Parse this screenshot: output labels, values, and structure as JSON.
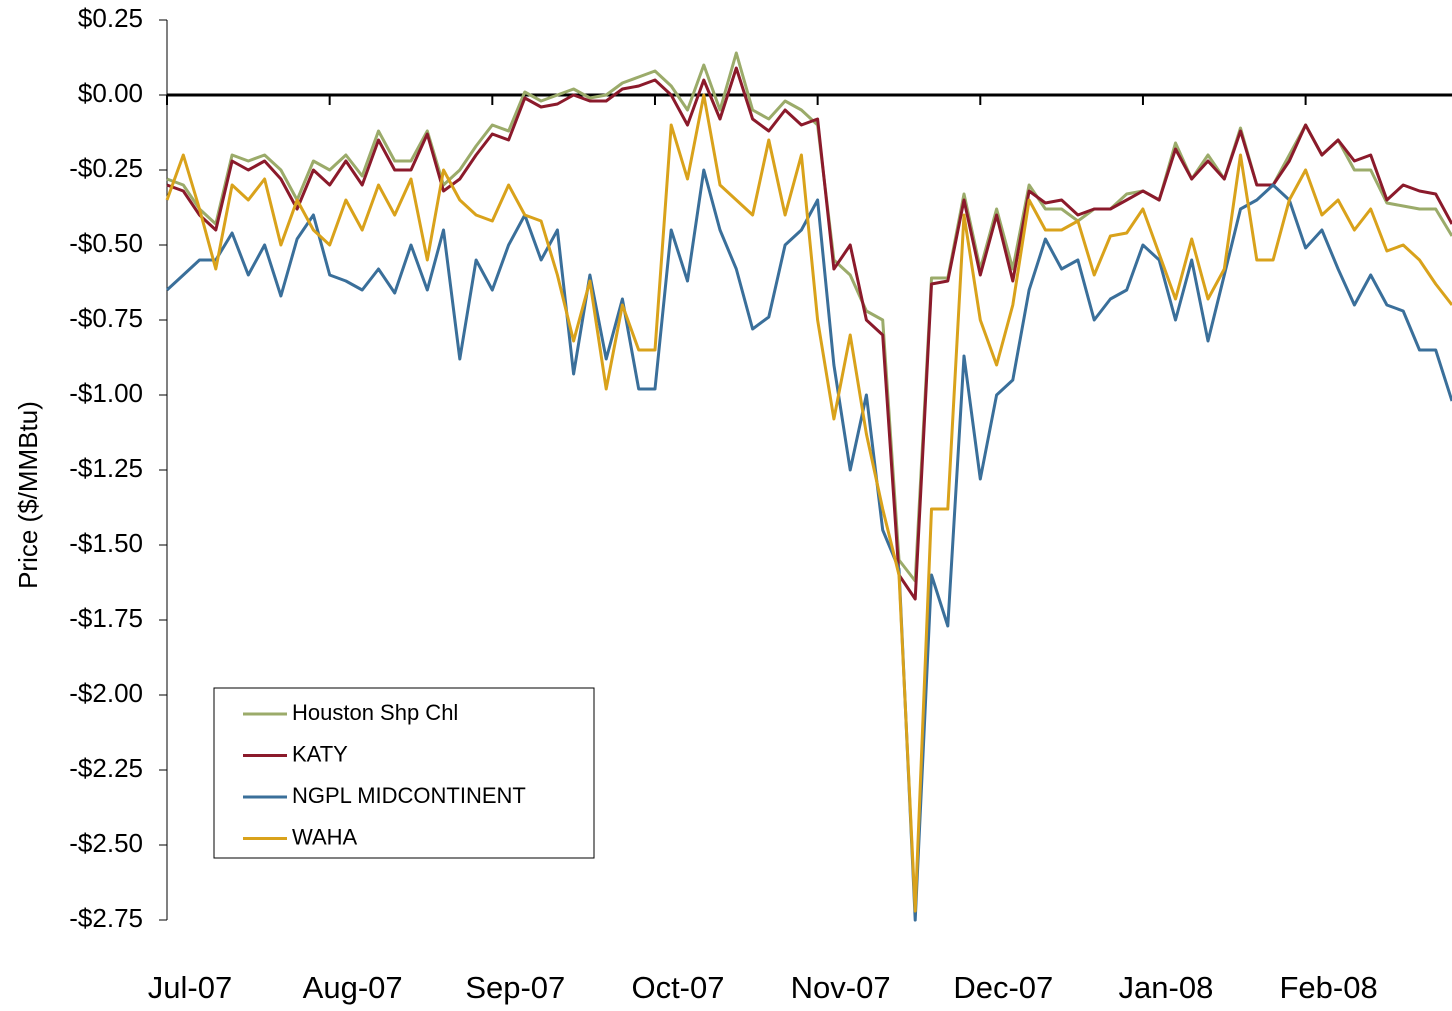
{
  "chart_data": {
    "type": "line",
    "y_label": "Price ($/MMBtu)",
    "categories": [
      "Jul-07",
      null,
      null,
      null,
      null,
      null,
      null,
      null,
      null,
      null,
      "Aug-07",
      null,
      null,
      null,
      null,
      null,
      null,
      null,
      null,
      null,
      "Sep-07",
      null,
      null,
      null,
      null,
      null,
      null,
      null,
      null,
      null,
      "Oct-07",
      null,
      null,
      null,
      null,
      null,
      null,
      null,
      null,
      null,
      "Nov-07",
      null,
      null,
      null,
      null,
      null,
      null,
      null,
      null,
      null,
      "Dec-07",
      null,
      null,
      null,
      null,
      null,
      null,
      null,
      null,
      null,
      "Jan-08",
      null,
      null,
      null,
      null,
      null,
      null,
      null,
      null,
      null,
      "Feb-08",
      null,
      null,
      null,
      null,
      null,
      null,
      null,
      null,
      null
    ],
    "ylim": [
      -2.75,
      0.25
    ],
    "yticks": [
      {
        "value": 0.25,
        "label": "$0.25"
      },
      {
        "value": 0,
        "label": "$0.00"
      },
      {
        "value": -0.25,
        "label": "-$0.25"
      },
      {
        "value": -0.5,
        "label": "-$0.50"
      },
      {
        "value": -0.75,
        "label": "-$0.75"
      },
      {
        "value": -1,
        "label": "-$1.00"
      },
      {
        "value": -1.25,
        "label": "-$1.25"
      },
      {
        "value": -1.5,
        "label": "-$1.50"
      },
      {
        "value": -1.75,
        "label": "-$1.75"
      },
      {
        "value": -2,
        "label": "-$2.00"
      },
      {
        "value": -2.25,
        "label": "-$2.25"
      },
      {
        "value": -2.5,
        "label": "-$2.50"
      },
      {
        "value": -2.75,
        "label": "-$2.75"
      }
    ],
    "legend": "lower left",
    "series": [
      {
        "name": "Houston Shp Chl",
        "color": "#9bab6a",
        "values": [
          -0.28,
          -0.3,
          -0.38,
          -0.43,
          -0.2,
          -0.22,
          -0.2,
          -0.25,
          -0.35,
          -0.22,
          -0.25,
          -0.2,
          -0.27,
          -0.12,
          -0.22,
          -0.22,
          -0.12,
          -0.3,
          -0.25,
          -0.17,
          -0.1,
          -0.12,
          0.01,
          -0.02,
          0,
          0.02,
          -0.01,
          0,
          0.04,
          0.06,
          0.08,
          0.03,
          -0.05,
          0.1,
          -0.05,
          0.14,
          -0.05,
          -0.08,
          -0.02,
          -0.05,
          -0.1,
          -0.55,
          -0.6,
          -0.72,
          -0.75,
          -1.55,
          -1.62,
          -0.61,
          -0.61,
          -0.33,
          -0.58,
          -0.38,
          -0.58,
          -0.3,
          -0.38,
          -0.38,
          -0.42,
          -0.38,
          -0.38,
          -0.33,
          -0.32,
          -0.35,
          -0.16,
          -0.28,
          -0.2,
          -0.28,
          -0.11,
          -0.3,
          -0.3,
          -0.2,
          -0.1,
          -0.2,
          -0.15,
          -0.25,
          -0.25,
          -0.36,
          -0.37,
          -0.38,
          -0.38,
          -0.47
        ]
      },
      {
        "name": "KATY",
        "color": "#8b1a2b",
        "values": [
          -0.3,
          -0.32,
          -0.4,
          -0.45,
          -0.22,
          -0.25,
          -0.22,
          -0.28,
          -0.38,
          -0.25,
          -0.3,
          -0.22,
          -0.3,
          -0.15,
          -0.25,
          -0.25,
          -0.13,
          -0.32,
          -0.28,
          -0.2,
          -0.13,
          -0.15,
          -0.01,
          -0.04,
          -0.03,
          0,
          -0.02,
          -0.02,
          0.02,
          0.03,
          0.05,
          0,
          -0.1,
          0.05,
          -0.08,
          0.09,
          -0.08,
          -0.12,
          -0.05,
          -0.1,
          -0.08,
          -0.58,
          -0.5,
          -0.75,
          -0.8,
          -1.6,
          -1.68,
          -0.63,
          -0.62,
          -0.35,
          -0.6,
          -0.4,
          -0.62,
          -0.32,
          -0.36,
          -0.35,
          -0.4,
          -0.38,
          -0.38,
          -0.35,
          -0.32,
          -0.35,
          -0.18,
          -0.28,
          -0.22,
          -0.28,
          -0.12,
          -0.3,
          -0.3,
          -0.22,
          -0.1,
          -0.2,
          -0.15,
          -0.22,
          -0.2,
          -0.35,
          -0.3,
          -0.32,
          -0.33,
          -0.43
        ]
      },
      {
        "name": "NGPL MIDCONTINENT",
        "color": "#3a6f9a",
        "values": [
          -0.65,
          -0.6,
          -0.55,
          -0.55,
          -0.46,
          -0.6,
          -0.5,
          -0.67,
          -0.48,
          -0.4,
          -0.6,
          -0.62,
          -0.65,
          -0.58,
          -0.66,
          -0.5,
          -0.65,
          -0.45,
          -0.88,
          -0.55,
          -0.65,
          -0.5,
          -0.4,
          -0.55,
          -0.45,
          -0.93,
          -0.6,
          -0.88,
          -0.68,
          -0.98,
          -0.98,
          -0.45,
          -0.62,
          -0.25,
          -0.45,
          -0.58,
          -0.78,
          -0.74,
          -0.5,
          -0.45,
          -0.35,
          -0.9,
          -1.25,
          -1.0,
          -1.45,
          -1.58,
          -2.75,
          -1.6,
          -1.77,
          -0.87,
          -1.28,
          -1.0,
          -0.95,
          -0.65,
          -0.48,
          -0.58,
          -0.55,
          -0.75,
          -0.68,
          -0.65,
          -0.5,
          -0.55,
          -0.75,
          -0.55,
          -0.82,
          -0.6,
          -0.38,
          -0.35,
          -0.3,
          -0.35,
          -0.51,
          -0.45,
          -0.58,
          -0.7,
          -0.6,
          -0.7,
          -0.72,
          -0.85,
          -0.85,
          -1.02
        ]
      },
      {
        "name": "WAHA",
        "color": "#d9a21b",
        "values": [
          -0.35,
          -0.2,
          -0.38,
          -0.58,
          -0.3,
          -0.35,
          -0.28,
          -0.5,
          -0.35,
          -0.45,
          -0.5,
          -0.35,
          -0.45,
          -0.3,
          -0.4,
          -0.28,
          -0.55,
          -0.25,
          -0.35,
          -0.4,
          -0.42,
          -0.3,
          -0.4,
          -0.42,
          -0.6,
          -0.82,
          -0.62,
          -0.98,
          -0.7,
          -0.85,
          -0.85,
          -0.1,
          -0.28,
          0,
          -0.3,
          -0.35,
          -0.4,
          -0.15,
          -0.4,
          -0.2,
          -0.75,
          -1.08,
          -0.8,
          -1.13,
          -1.38,
          -1.6,
          -2.72,
          -1.38,
          -1.38,
          -0.4,
          -0.75,
          -0.9,
          -0.7,
          -0.35,
          -0.45,
          -0.45,
          -0.42,
          -0.6,
          -0.47,
          -0.46,
          -0.38,
          -0.53,
          -0.68,
          -0.48,
          -0.68,
          -0.58,
          -0.2,
          -0.55,
          -0.55,
          -0.35,
          -0.25,
          -0.4,
          -0.35,
          -0.45,
          -0.38,
          -0.52,
          -0.5,
          -0.55,
          -0.63,
          -0.7
        ]
      }
    ]
  }
}
